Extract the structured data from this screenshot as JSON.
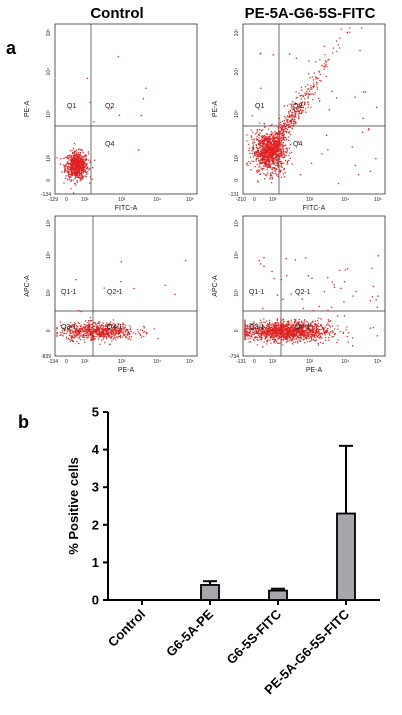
{
  "figure": {
    "headers": [
      "Control",
      "PE-5A-G6-5S-FITC"
    ],
    "panel_labels": [
      "a",
      "b"
    ]
  },
  "flow_panels": [
    {
      "sample": "Control",
      "x_axis": "FITC-A",
      "y_axis": "PE-A",
      "quadrants": [
        "Q1",
        "Q2",
        "Q4"
      ],
      "x_min_label": "-129",
      "y_min_label": "-134",
      "x_ticks": [
        "0",
        "10²",
        "10³",
        "10⁴",
        "10⁵"
      ],
      "y_ticks": [
        "0",
        "10²",
        "10³",
        "10⁴",
        "10⁵"
      ],
      "population": {
        "cx": 0.15,
        "cy": 0.17,
        "spread": 0.04,
        "count": 700,
        "outliers": 10,
        "diagonal": false
      }
    },
    {
      "sample": "PE-5A-G6-5S-FITC",
      "x_axis": "FITC-A",
      "y_axis": "PE-A",
      "quadrants": [
        "Q1",
        "Q2",
        "Q4"
      ],
      "x_min_label": "-210",
      "y_min_label": "-131",
      "x_ticks": [
        "0",
        "10²",
        "10³",
        "10⁴",
        "10⁵"
      ],
      "y_ticks": [
        "0",
        "10²",
        "10³",
        "10⁴",
        "10⁵"
      ],
      "population": {
        "cx": 0.18,
        "cy": 0.25,
        "spread": 0.06,
        "count": 1400,
        "outliers": 45,
        "diagonal": true
      }
    },
    {
      "sample": "Control",
      "x_axis": "PE-A",
      "y_axis": "APC-A",
      "quadrants": [
        "Q1-1",
        "Q2-1",
        "Q3-1",
        "Q4-1"
      ],
      "x_min_label": "-134",
      "y_min_label": "-839",
      "x_ticks": [
        "0",
        "10²",
        "10³",
        "10⁴",
        "10⁵"
      ],
      "y_ticks": [
        "0",
        "10³",
        "10⁴",
        "10⁵"
      ],
      "population": {
        "cx": 0.3,
        "cy": 0.18,
        "spread": 0.12,
        "count": 700,
        "outliers": 15,
        "diagonal": false
      }
    },
    {
      "sample": "PE-5A-G6-5S-FITC",
      "x_axis": "PE-A",
      "y_axis": "APC-A",
      "quadrants": [
        "Q1-1",
        "Q2-1",
        "Q3-1",
        "Q4-1"
      ],
      "x_min_label": "-131",
      "y_min_label": "-734",
      "x_ticks": [
        "0",
        "10²",
        "10³",
        "10⁴",
        "10⁵"
      ],
      "y_ticks": [
        "0",
        "10³",
        "10⁴",
        "10⁵"
      ],
      "population": {
        "cx": 0.3,
        "cy": 0.18,
        "spread": 0.14,
        "count": 1400,
        "outliers": 60,
        "diagonal": false
      }
    }
  ],
  "dot_color": "#e02020",
  "bar_color": "#a6a6ad",
  "chart_data": {
    "type": "bar",
    "categories": [
      "Control",
      "G6-5A-PE",
      "G6-5S-FITC",
      "PE-5A-G6-5S-FITC"
    ],
    "values": [
      0,
      0.4,
      0.25,
      2.3
    ],
    "errors": [
      0,
      0.1,
      0.05,
      1.8
    ],
    "ylabel": "% Positive cells",
    "ylim": [
      0,
      5
    ],
    "yticks": [
      0,
      1,
      2,
      3,
      4,
      5
    ]
  }
}
